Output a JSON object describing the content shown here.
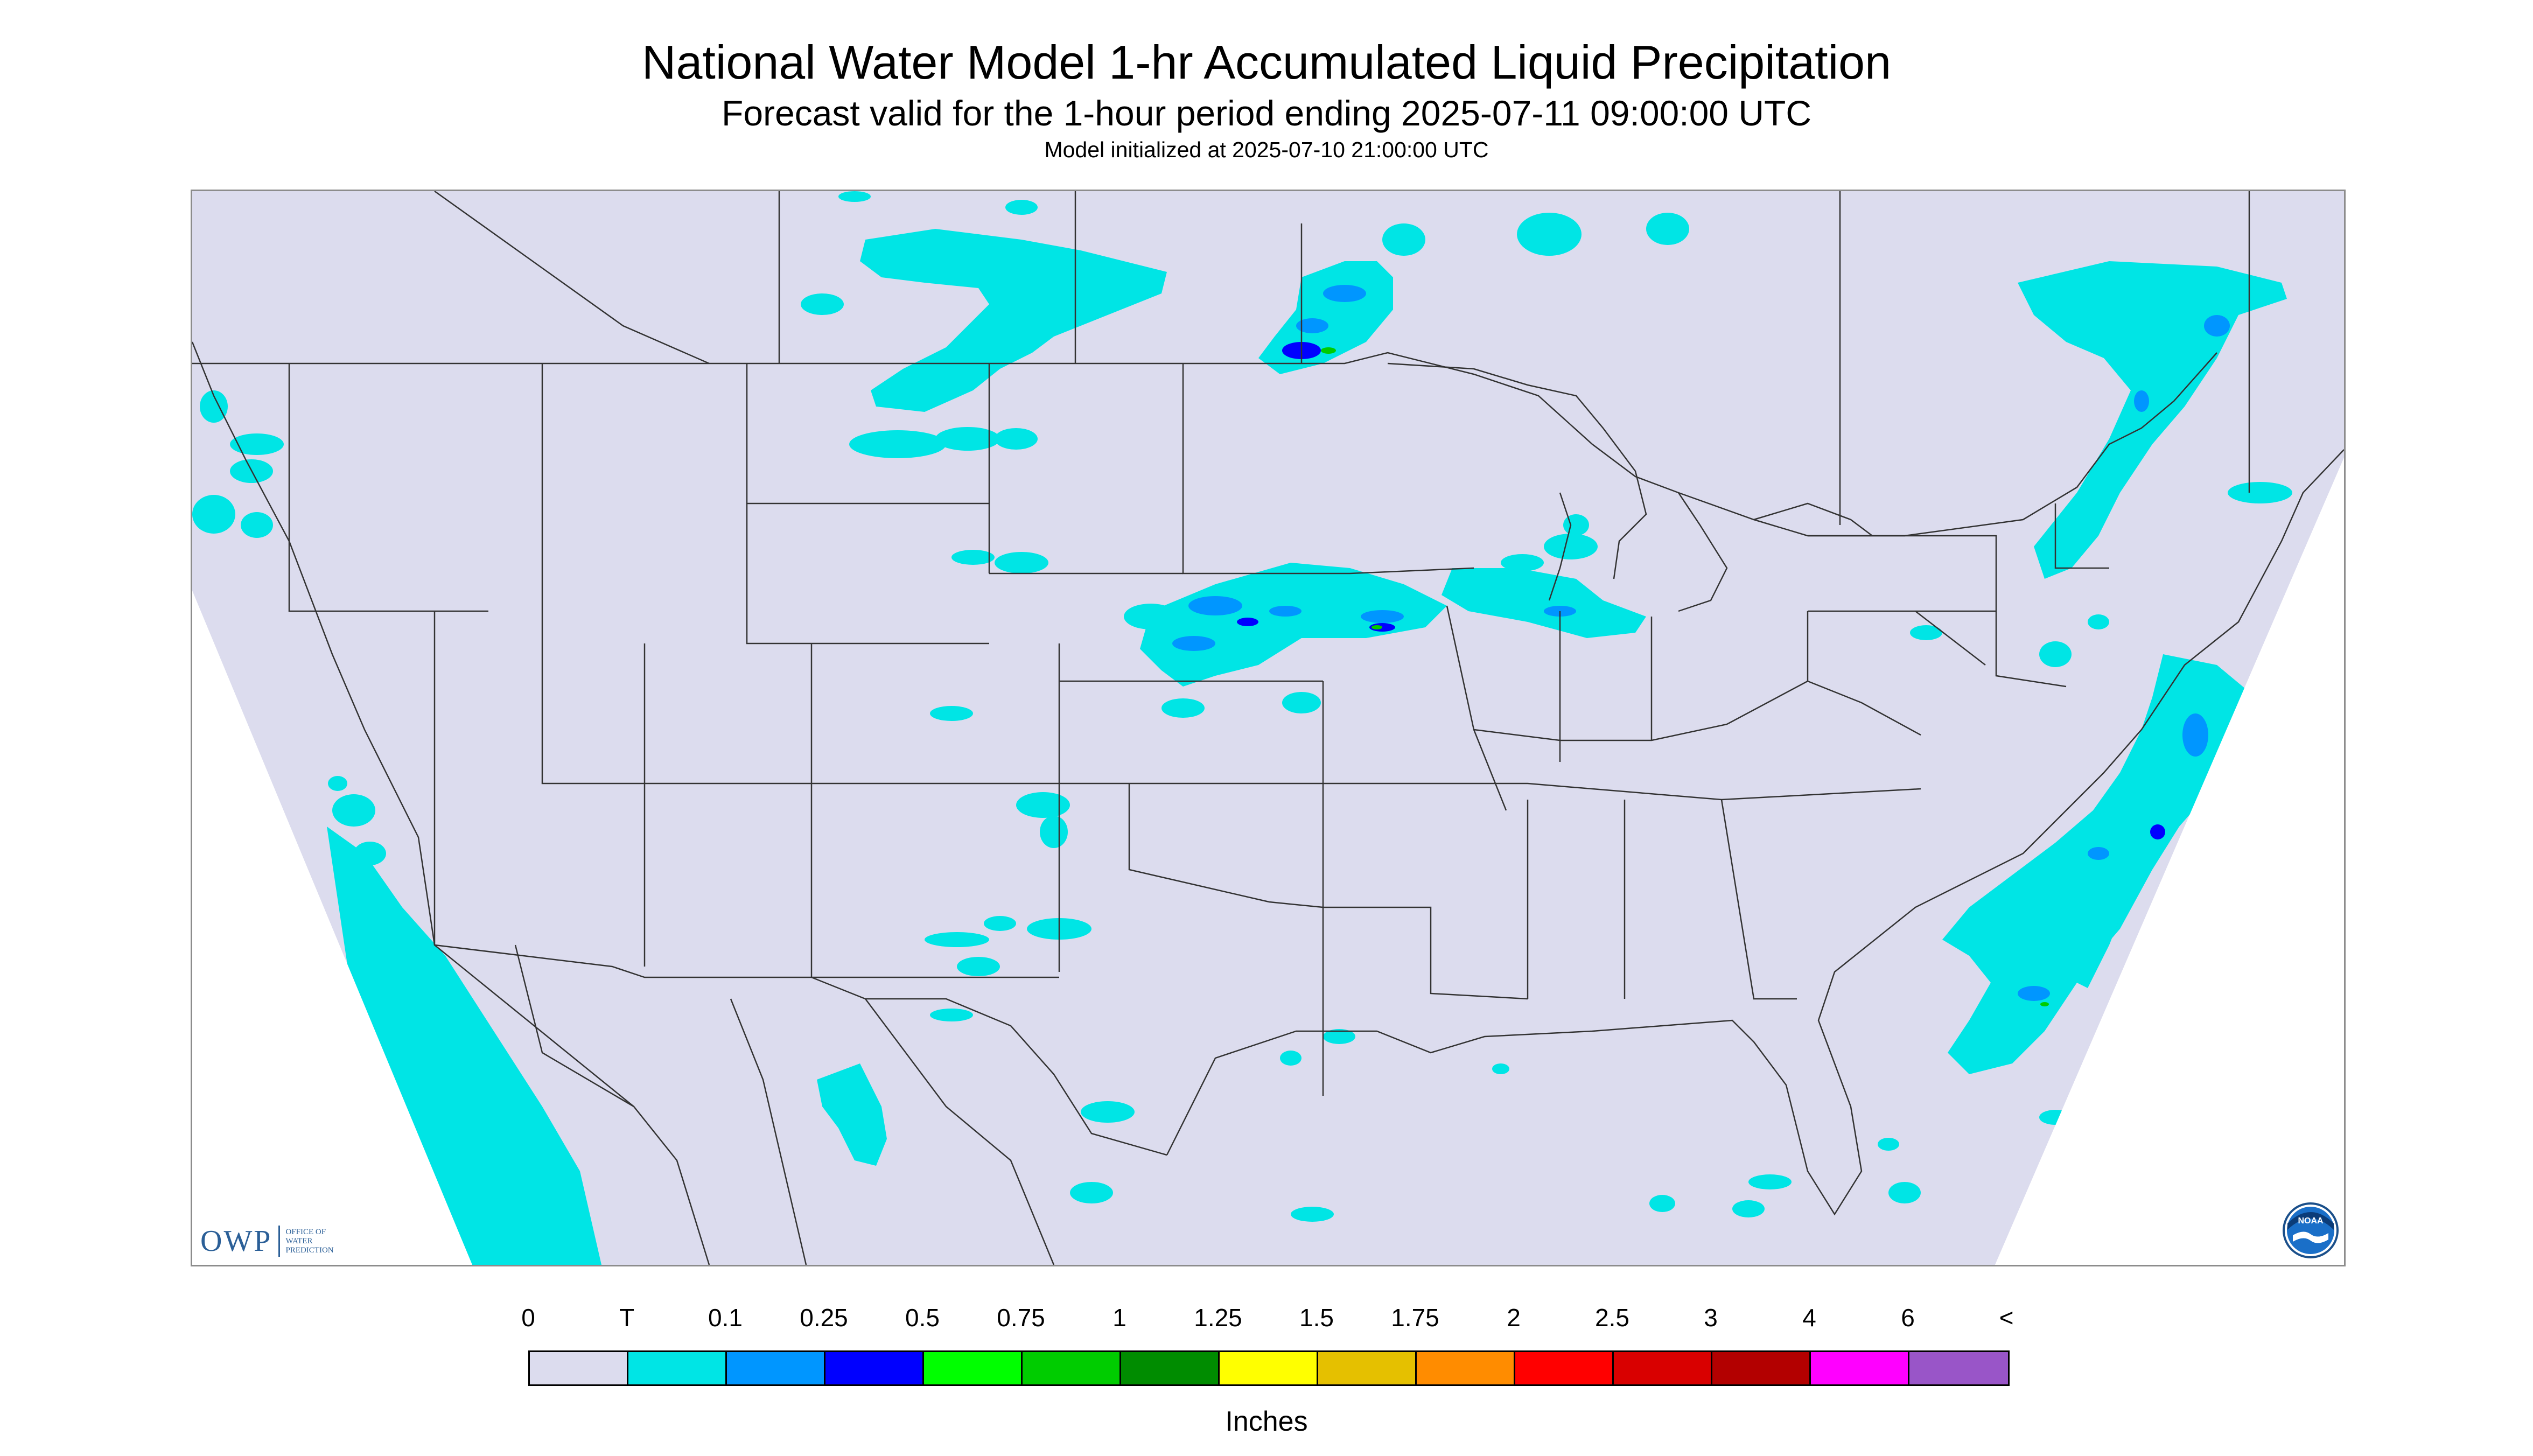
{
  "header": {
    "title": "National Water Model 1-hr Accumulated Liquid Precipitation",
    "subtitle": "Forecast valid for the 1-hour period ending 2025-07-11 09:00:00 UTC",
    "init_line": "Model initialized at 2025-07-10 21:00:00 UTC"
  },
  "map": {
    "region": "Continental United States",
    "background_color": "#dcdcee",
    "boundary_color": "#333333",
    "outside_domain_color": "#ffffff"
  },
  "logos": {
    "owp": {
      "text": "OWP",
      "subtext_lines": [
        "OFFICE OF",
        "WATER",
        "PREDICTION"
      ],
      "color": "#2b5f97"
    },
    "noaa": {
      "text": "NOAA",
      "icon": "noaa-seal-icon"
    }
  },
  "legend": {
    "units": "Inches",
    "tick_labels": [
      "0",
      "T",
      "0.1",
      "0.25",
      "0.5",
      "0.75",
      "1",
      "1.25",
      "1.5",
      "1.75",
      "2",
      "2.5",
      "3",
      "4",
      "6",
      "<"
    ],
    "colors": [
      "#dcdcee",
      "#00e5e5",
      "#0096ff",
      "#0000ff",
      "#00ff00",
      "#00cc00",
      "#008c00",
      "#ffff00",
      "#e5c000",
      "#ff8c00",
      "#ff0000",
      "#d90000",
      "#b30000",
      "#ff00ff",
      "#9955c8"
    ]
  }
}
